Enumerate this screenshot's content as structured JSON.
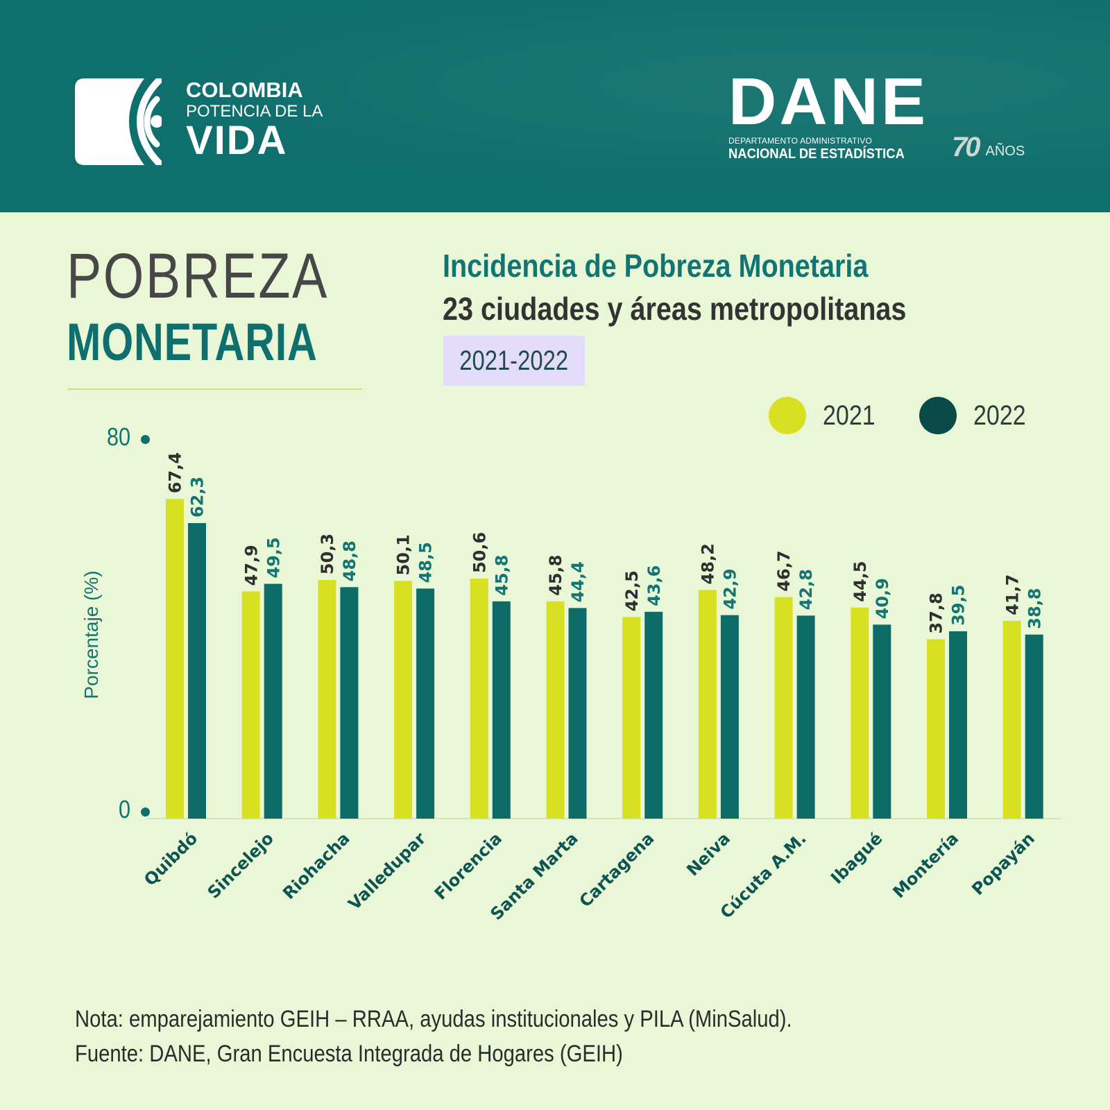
{
  "header": {
    "left_logo": {
      "icon": "colombia-potencia-mark-icon",
      "line1": "COLOMBIA",
      "line2": "POTENCIA DE LA",
      "line3": "VIDA"
    },
    "right_logo": {
      "name": "DANE",
      "line1": "DEPARTAMENTO ADMINISTRATIVO",
      "line2": "NACIONAL DE ESTADÍSTICA",
      "anniversary_number": "70",
      "anniversary_text": "AÑOS"
    }
  },
  "title": {
    "main_line1": "POBREZA",
    "main_line2": "MONETARIA",
    "subtitle_line1": "Incidencia de Pobreza Monetaria",
    "subtitle_line2": "23 ciudades y áreas metropolitanas",
    "period": "2021-2022"
  },
  "colors": {
    "header_bg": "#0f6f6c",
    "page_bg": "#e9f7d6",
    "series_2021": "#d9e021",
    "series_2022": "#0d6b68",
    "label_2021": "#2f2f2f",
    "label_2022": "#137573",
    "period_bg": "#e2dcfa"
  },
  "chart_data": {
    "type": "bar",
    "title": "Incidencia de Pobreza Monetaria — 23 ciudades y áreas metropolitanas",
    "xlabel": "",
    "ylabel": "Porcentaje (%)",
    "ylim": [
      0,
      80
    ],
    "yticks": [
      "0",
      "80"
    ],
    "grid": false,
    "legend_position": "top-right",
    "categories": [
      "Quibdó",
      "Sincelejo",
      "Riohacha",
      "Valledupar",
      "Florencia",
      "Santa Marta",
      "Cartagena",
      "Neiva",
      "Cúcuta A.M.",
      "Ibagué",
      "Montería",
      "Popayán"
    ],
    "series": [
      {
        "name": "2021",
        "values": [
          67.4,
          47.9,
          50.3,
          50.1,
          50.6,
          45.8,
          42.5,
          48.2,
          46.7,
          44.5,
          37.8,
          41.7
        ],
        "labels": [
          "67,4",
          "47,9",
          "50,3",
          "50,1",
          "50,6",
          "45,8",
          "42,5",
          "48,2",
          "46,7",
          "44,5",
          "37,8",
          "41,7"
        ]
      },
      {
        "name": "2022",
        "values": [
          62.3,
          49.5,
          48.8,
          48.5,
          45.8,
          44.4,
          43.6,
          42.9,
          42.8,
          40.9,
          39.5,
          38.8
        ],
        "labels": [
          "62,3",
          "49,5",
          "48,8",
          "48,5",
          "45,8",
          "44,4",
          "43,6",
          "42,9",
          "42,8",
          "40,9",
          "39,5",
          "38,8"
        ]
      }
    ]
  },
  "footer": {
    "note": "Nota: emparejamiento GEIH – RRAA, ayudas institucionales y PILA (MinSalud).",
    "source": "Fuente: DANE, Gran Encuesta Integrada de Hogares (GEIH)"
  }
}
